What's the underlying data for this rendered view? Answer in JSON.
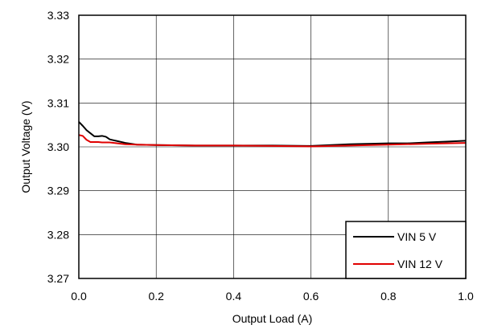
{
  "chart_data": {
    "type": "line",
    "title": "",
    "xlabel": "Output Load (A)",
    "ylabel": "Output Voltage (V)",
    "xlim": [
      0,
      1.0
    ],
    "ylim": [
      3.27,
      3.33
    ],
    "x_ticks": [
      0,
      0.2,
      0.4,
      0.6,
      0.8,
      1.0
    ],
    "x_tick_labels": [
      "0.0",
      "0.2",
      "0.4",
      "0.6",
      "0.8",
      "1.0"
    ],
    "y_ticks": [
      3.27,
      3.28,
      3.29,
      3.3,
      3.31,
      3.32,
      3.33
    ],
    "y_tick_labels": [
      "3.27",
      "3.28",
      "3.29",
      "3.30",
      "3.31",
      "3.32",
      "3.33"
    ],
    "grid": true,
    "legend_position": "bottom-right",
    "series": [
      {
        "name": "VIN 5 V",
        "color": "#000000",
        "x": [
          0.0,
          0.01,
          0.02,
          0.03,
          0.04,
          0.05,
          0.06,
          0.07,
          0.08,
          0.09,
          0.1,
          0.12,
          0.15,
          0.2,
          0.3,
          0.4,
          0.5,
          0.6,
          0.7,
          0.8,
          0.85,
          0.9,
          0.95,
          1.0
        ],
        "y": [
          3.3057,
          3.3048,
          3.3038,
          3.3031,
          3.3024,
          3.3024,
          3.3025,
          3.3023,
          3.3017,
          3.3015,
          3.3013,
          3.3009,
          3.3005,
          3.3004,
          3.3003,
          3.3003,
          3.3003,
          3.3002,
          3.3006,
          3.3008,
          3.3008,
          3.301,
          3.3012,
          3.3014
        ]
      },
      {
        "name": "VIN 12 V",
        "color": "#e00000",
        "x": [
          0.0,
          0.01,
          0.02,
          0.03,
          0.04,
          0.05,
          0.06,
          0.08,
          0.1,
          0.12,
          0.15,
          0.2,
          0.3,
          0.4,
          0.5,
          0.6,
          0.7,
          0.8,
          0.9,
          1.0
        ],
        "y": [
          3.3027,
          3.3025,
          3.3016,
          3.3011,
          3.3011,
          3.3011,
          3.301,
          3.301,
          3.3008,
          3.3006,
          3.3005,
          3.3004,
          3.3003,
          3.3003,
          3.3002,
          3.3001,
          3.3003,
          3.3005,
          3.3007,
          3.3009
        ]
      }
    ]
  }
}
